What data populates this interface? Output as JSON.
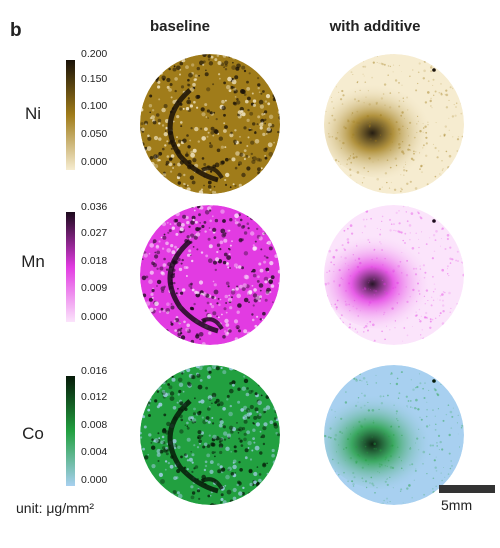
{
  "panel_label": "b",
  "columns": [
    "baseline",
    "with additive"
  ],
  "rows": [
    {
      "element": "Ni",
      "ticks": [
        "0.200",
        "0.150",
        "0.100",
        "0.050",
        "0.000"
      ],
      "colors": {
        "high": "#1a1208",
        "mid": "#a07c1a",
        "low": "#f6ecd0"
      }
    },
    {
      "element": "Mn",
      "ticks": [
        "0.036",
        "0.027",
        "0.018",
        "0.009",
        "0.000"
      ],
      "colors": {
        "high": "#1c0a1c",
        "mid": "#e23be2",
        "low": "#fbe4fb"
      }
    },
    {
      "element": "Co",
      "ticks": [
        "0.016",
        "0.012",
        "0.008",
        "0.004",
        "0.000"
      ],
      "colors": {
        "high": "#061a08",
        "mid": "#22a040",
        "low": "#a8d0f0"
      }
    }
  ],
  "unit_label": "unit: μg/mm²",
  "scale_bar_label": "5mm"
}
